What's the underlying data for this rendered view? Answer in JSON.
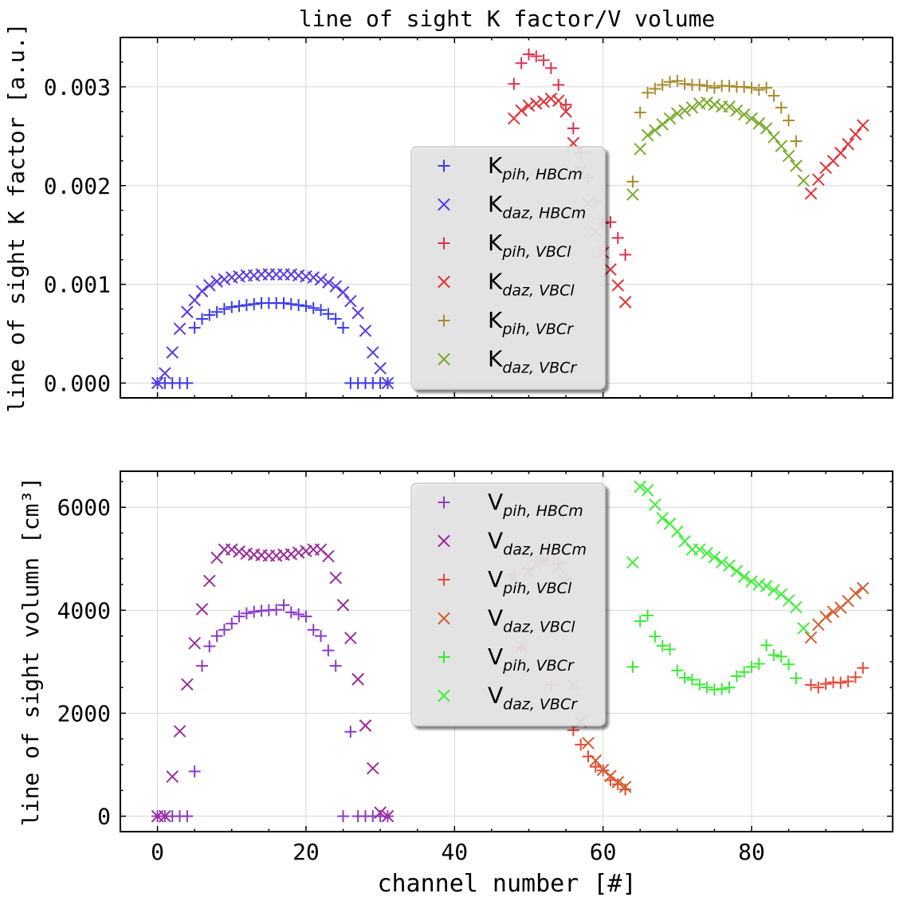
{
  "figure": {
    "title": "line of sight K factor/V volume",
    "xlabel": "channel number [#]"
  },
  "chart_data": [
    {
      "type": "scatter",
      "title": "line of sight K factor/V volume",
      "xlabel": "",
      "ylabel": "line of sight K factor [a.u.]",
      "xlim": [
        -5,
        99
      ],
      "ylim": [
        -0.00015,
        0.0035
      ],
      "xticks": [
        0,
        20,
        40,
        60,
        80
      ],
      "xtick_labels": [
        "",
        "",
        "",
        "",
        ""
      ],
      "yticks": [
        0.0,
        0.001,
        0.002,
        0.003
      ],
      "ytick_labels": [
        "0.000",
        "0.001",
        "0.002",
        "0.003"
      ],
      "grid": true,
      "legend_position": "center",
      "series": [
        {
          "name": "K_pih,HBCm",
          "label_main": "K",
          "label_sub": "pih, HBCm",
          "marker": "plus",
          "color": "#3b3be8",
          "x": [
            0,
            1,
            2,
            3,
            4,
            5,
            6,
            7,
            8,
            9,
            10,
            11,
            12,
            13,
            14,
            15,
            16,
            17,
            18,
            19,
            20,
            21,
            22,
            23,
            24,
            25,
            26,
            27,
            28,
            29,
            30,
            31
          ],
          "y": [
            0,
            0,
            0,
            0,
            0,
            0.00056,
            0.00065,
            0.00069,
            0.00072,
            0.00075,
            0.00077,
            0.00078,
            0.00079,
            0.0008,
            0.00081,
            0.00081,
            0.00081,
            0.00081,
            0.0008,
            0.00079,
            0.00078,
            0.00076,
            0.00074,
            0.0007,
            0.00065,
            0.00056,
            0,
            0,
            0,
            0,
            0,
            0
          ]
        },
        {
          "name": "K_daz,HBCm",
          "label_main": "K",
          "label_sub": "daz, HBCm",
          "marker": "x",
          "color": "#5a3be0",
          "x": [
            0,
            1,
            2,
            3,
            4,
            5,
            6,
            7,
            8,
            9,
            10,
            11,
            12,
            13,
            14,
            15,
            16,
            17,
            18,
            19,
            20,
            21,
            22,
            23,
            24,
            25,
            26,
            27,
            28,
            29,
            30,
            31
          ],
          "y": [
            0,
            0.0001,
            0.00031,
            0.00055,
            0.00072,
            0.00084,
            0.00093,
            0.00099,
            0.00103,
            0.00105,
            0.00107,
            0.00108,
            0.00109,
            0.00109,
            0.0011,
            0.0011,
            0.0011,
            0.0011,
            0.0011,
            0.00109,
            0.00108,
            0.00107,
            0.00105,
            0.00102,
            0.00098,
            0.00092,
            0.00083,
            0.00071,
            0.00053,
            0.00031,
            0.00015,
            0
          ]
        },
        {
          "name": "K_pih,VBCl",
          "label_main": "K",
          "label_sub": "pih, VBCl",
          "marker": "plus",
          "color": "#d83350",
          "x": [
            48,
            49,
            50,
            51,
            52,
            53,
            54,
            55,
            56,
            57,
            58,
            59,
            60,
            61,
            62,
            63
          ],
          "y": [
            0.00303,
            0.00324,
            0.00333,
            0.00331,
            0.00327,
            0.00319,
            0.00302,
            0.00282,
            0.00258,
            0.00233,
            0.00208,
            0.00184,
            0.00162,
            0.00163,
            0.00147,
            0.0013
          ]
        },
        {
          "name": "K_daz,VBCl",
          "label_main": "K",
          "label_sub": "daz, VBCl",
          "marker": "x",
          "color": "#e03338",
          "x": [
            48,
            49,
            50,
            51,
            52,
            53,
            54,
            55,
            56,
            57,
            58,
            59,
            60,
            61,
            62,
            63,
            88,
            89,
            90,
            91,
            92,
            93,
            94,
            95
          ],
          "y": [
            0.00268,
            0.00276,
            0.00281,
            0.00283,
            0.00285,
            0.00288,
            0.00286,
            0.00275,
            0.00243,
            0.00215,
            0.00182,
            0.00153,
            0.00132,
            0.00115,
            0.00099,
            0.00082,
            0.00192,
            0.00206,
            0.00218,
            0.00225,
            0.00233,
            0.00242,
            0.00252,
            0.00261
          ]
        },
        {
          "name": "K_pih,VBCr",
          "label_main": "K",
          "label_sub": "pih, VBCr",
          "marker": "plus",
          "color": "#a68c2e",
          "x": [
            64,
            65,
            66,
            67,
            68,
            69,
            70,
            71,
            72,
            73,
            74,
            75,
            76,
            77,
            78,
            79,
            80,
            81,
            82,
            83,
            84,
            85,
            86
          ],
          "y": [
            0.00204,
            0.00274,
            0.00294,
            0.00298,
            0.00302,
            0.00305,
            0.00306,
            0.00303,
            0.00302,
            0.00302,
            0.00301,
            0.00299,
            0.00301,
            0.00301,
            0.003,
            0.003,
            0.00299,
            0.00297,
            0.00299,
            0.00291,
            0.00279,
            0.00266,
            0.00245
          ]
        },
        {
          "name": "K_daz,VBCr",
          "label_main": "K",
          "label_sub": "daz, VBCr",
          "marker": "x",
          "color": "#7aab2e",
          "x": [
            64,
            65,
            66,
            67,
            68,
            69,
            70,
            71,
            72,
            73,
            74,
            75,
            76,
            77,
            78,
            79,
            80,
            81,
            82,
            83,
            84,
            85,
            86,
            87
          ],
          "y": [
            0.00191,
            0.00237,
            0.00251,
            0.00256,
            0.00262,
            0.00268,
            0.00273,
            0.00276,
            0.00279,
            0.00283,
            0.00284,
            0.00282,
            0.0028,
            0.0028,
            0.00276,
            0.00272,
            0.00268,
            0.00263,
            0.00258,
            0.00249,
            0.0024,
            0.0023,
            0.0022,
            0.00205
          ]
        }
      ]
    },
    {
      "type": "scatter",
      "title": "",
      "xlabel": "channel number [#]",
      "ylabel": "line of sight volumn [cm³]",
      "xlim": [
        -5,
        99
      ],
      "ylim": [
        -300,
        6700
      ],
      "xticks": [
        0,
        20,
        40,
        60,
        80
      ],
      "xtick_labels": [
        "0",
        "20",
        "40",
        "60",
        "80"
      ],
      "yticks": [
        0,
        2000,
        4000,
        6000
      ],
      "ytick_labels": [
        "0",
        "2000",
        "4000",
        "6000"
      ],
      "grid": true,
      "legend_position": "center",
      "series": [
        {
          "name": "V_pih,HBCm",
          "label_main": "V",
          "label_sub": "pih, HBCm",
          "marker": "plus",
          "color": "#8a3bc8",
          "x": [
            0,
            1,
            2,
            3,
            4,
            5,
            6,
            7,
            8,
            9,
            10,
            11,
            12,
            13,
            14,
            15,
            16,
            17,
            18,
            19,
            20,
            21,
            22,
            23,
            24,
            25,
            26,
            27,
            28,
            29,
            30,
            31
          ],
          "y": [
            0,
            0,
            0,
            0,
            0,
            870,
            2920,
            3300,
            3500,
            3620,
            3740,
            3880,
            3940,
            3970,
            3990,
            4000,
            4010,
            4100,
            3960,
            3920,
            3880,
            3620,
            3500,
            3220,
            2920,
            0,
            1640,
            0,
            0,
            0,
            0,
            0
          ]
        },
        {
          "name": "V_daz,HBCm",
          "label_main": "V",
          "label_sub": "daz, HBCm",
          "marker": "x",
          "color": "#9a2e9a",
          "x": [
            0,
            1,
            2,
            3,
            4,
            5,
            6,
            7,
            8,
            9,
            10,
            11,
            12,
            13,
            14,
            15,
            16,
            17,
            18,
            19,
            20,
            21,
            22,
            23,
            24,
            25,
            26,
            27,
            28,
            29,
            30,
            31
          ],
          "y": [
            0,
            0,
            770,
            1650,
            2560,
            3360,
            4020,
            4570,
            5020,
            5180,
            5180,
            5140,
            5100,
            5080,
            5070,
            5060,
            5060,
            5080,
            5090,
            5120,
            5150,
            5180,
            5180,
            5050,
            4630,
            4100,
            3460,
            2660,
            1760,
            930,
            70,
            0
          ]
        },
        {
          "name": "V_pih,VBCl",
          "label_main": "V",
          "label_sub": "pih, VBCl",
          "marker": "plus",
          "color": "#e84838",
          "x": [
            48,
            49,
            50,
            51,
            52,
            53,
            54,
            55,
            56,
            57,
            58,
            59,
            60,
            61,
            62,
            63,
            88,
            89,
            90,
            91,
            92,
            93,
            94,
            95
          ],
          "y": [
            4700,
            3280,
            4800,
            4940,
            4980,
            2550,
            4900,
            4600,
            1670,
            1390,
            1160,
            960,
            890,
            700,
            620,
            520,
            2550,
            2500,
            2570,
            2600,
            2590,
            2620,
            2700,
            2880
          ]
        },
        {
          "name": "V_daz,VBCl",
          "label_main": "V",
          "label_sub": "daz, VBCl",
          "marker": "x",
          "color": "#d06030",
          "x": [
            48,
            49,
            50,
            51,
            52,
            53,
            54,
            55,
            56,
            57,
            58,
            59,
            60,
            61,
            62,
            63,
            88,
            89,
            90,
            91,
            92,
            93,
            94,
            95
          ],
          "y": [
            4600,
            3300,
            4750,
            4900,
            4960,
            3000,
            4850,
            4550,
            2550,
            1840,
            1420,
            1080,
            900,
            780,
            660,
            570,
            3470,
            3720,
            3870,
            3970,
            4050,
            4180,
            4330,
            4430
          ]
        },
        {
          "name": "V_pih,VBCr",
          "label_main": "V",
          "label_sub": "pih, VBCr",
          "marker": "plus",
          "color": "#3ee838",
          "x": [
            64,
            65,
            66,
            67,
            68,
            69,
            70,
            71,
            72,
            73,
            74,
            75,
            76,
            77,
            78,
            79,
            80,
            81,
            82,
            83,
            84,
            85,
            86
          ],
          "y": [
            2900,
            3790,
            3900,
            3490,
            3310,
            3240,
            2830,
            2690,
            2650,
            2560,
            2500,
            2460,
            2470,
            2500,
            2720,
            2800,
            2900,
            2960,
            3320,
            3130,
            3100,
            2950,
            2680
          ]
        },
        {
          "name": "V_daz,VBCr",
          "label_main": "V",
          "label_sub": "daz, VBCr",
          "marker": "x",
          "color": "#42ee3c",
          "x": [
            64,
            65,
            66,
            67,
            68,
            69,
            70,
            71,
            72,
            73,
            74,
            75,
            76,
            77,
            78,
            79,
            80,
            81,
            82,
            83,
            84,
            85,
            86,
            87
          ],
          "y": [
            4930,
            6400,
            6330,
            6050,
            5790,
            5680,
            5530,
            5340,
            5180,
            5180,
            5110,
            5030,
            4930,
            4870,
            4760,
            4650,
            4560,
            4500,
            4470,
            4390,
            4310,
            4190,
            4060,
            3650
          ]
        }
      ]
    }
  ]
}
